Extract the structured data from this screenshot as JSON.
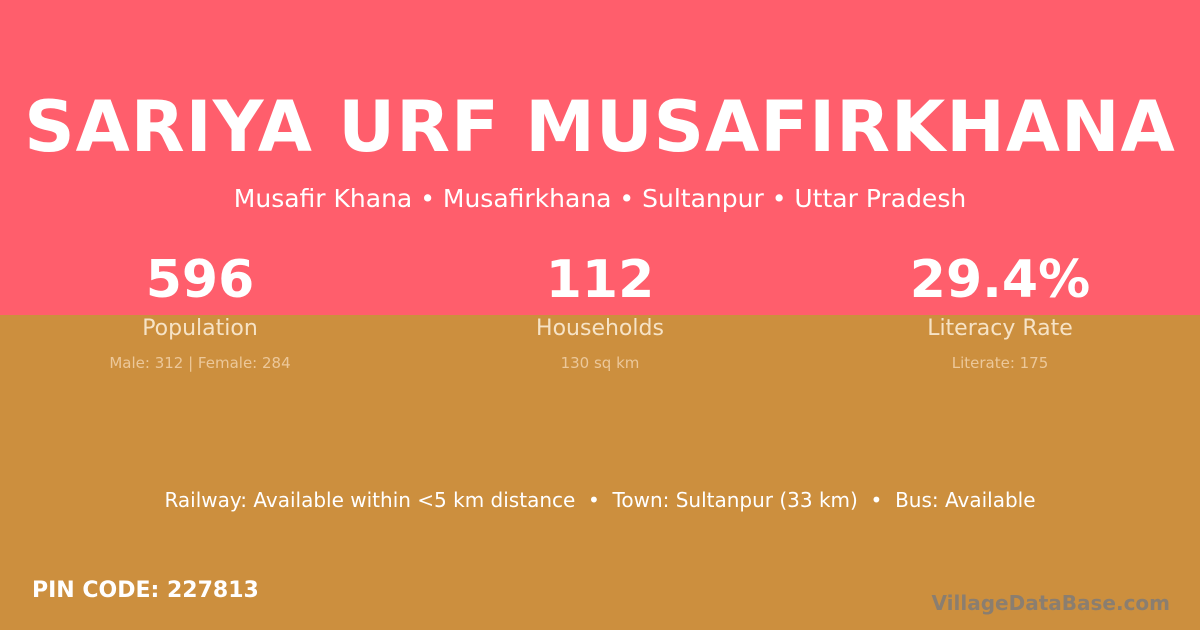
{
  "header": {
    "title": "SARIYA URF MUSAFIRKHANA",
    "subtitle": "Musafir Khana • Musafirkhana • Sultanpur • Uttar Pradesh"
  },
  "stats": [
    {
      "value": "596",
      "label": "Population",
      "detail": "Male: 312 | Female: 284"
    },
    {
      "value": "112",
      "label": "Households",
      "detail": "130 sq km"
    },
    {
      "value": "29.4%",
      "label": "Literacy Rate",
      "detail": "Literate: 175"
    }
  ],
  "facilities": "Railway: Available within <5 km distance  •  Town: Sultanpur (33 km)  •  Bus: Available",
  "pin_code": "PIN CODE: 227813",
  "logo_text": "VillageDataBase.com",
  "colors": {
    "top_band": "#ff5e6c",
    "bottom_band": "#cc8f3e"
  }
}
